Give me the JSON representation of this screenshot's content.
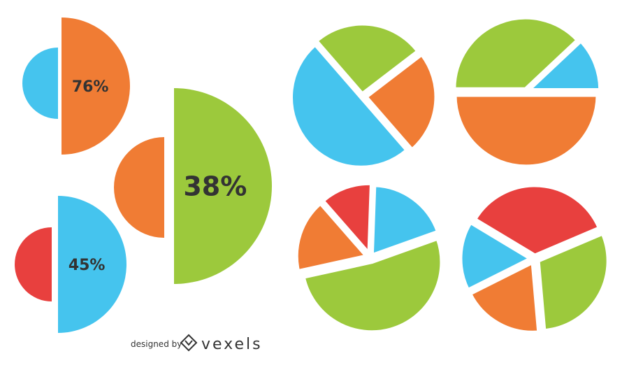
{
  "palette": {
    "blue": "#45c4ee",
    "orange": "#f07c34",
    "green": "#9cc93c",
    "red": "#e8403e",
    "text": "#333333"
  },
  "chart_data": [
    {
      "type": "pie",
      "style": "half-circle pair",
      "label": "76%",
      "slices": [
        {
          "color": "orange",
          "value": 76
        },
        {
          "color": "blue",
          "value": 24
        }
      ]
    },
    {
      "type": "pie",
      "style": "half-circle pair",
      "label": "38%",
      "slices": [
        {
          "color": "green",
          "value": 38
        },
        {
          "color": "orange",
          "value": 62
        }
      ]
    },
    {
      "type": "pie",
      "style": "half-circle pair",
      "label": "45%",
      "slices": [
        {
          "color": "blue",
          "value": 45
        },
        {
          "color": "red",
          "value": 55
        }
      ]
    },
    {
      "type": "pie",
      "style": "exploded",
      "slices": [
        {
          "color": "green",
          "value": 26
        },
        {
          "color": "orange",
          "value": 24
        },
        {
          "color": "blue",
          "value": 50
        }
      ]
    },
    {
      "type": "pie",
      "style": "exploded",
      "slices": [
        {
          "color": "green",
          "value": 38
        },
        {
          "color": "blue",
          "value": 12
        },
        {
          "color": "orange",
          "value": 50
        }
      ]
    },
    {
      "type": "pie",
      "style": "exploded",
      "slices": [
        {
          "color": "blue",
          "value": 19
        },
        {
          "color": "green",
          "value": 52
        },
        {
          "color": "orange",
          "value": 17
        },
        {
          "color": "red",
          "value": 12
        }
      ]
    },
    {
      "type": "pie",
      "style": "exploded",
      "slices": [
        {
          "color": "red",
          "value": 35
        },
        {
          "color": "green",
          "value": 30
        },
        {
          "color": "orange",
          "value": 19
        },
        {
          "color": "blue",
          "value": 16
        }
      ]
    }
  ],
  "credit": {
    "designed_by": "designed by",
    "brand": "vexels",
    "logo_icon": "vexels-diamond-logo-icon"
  }
}
